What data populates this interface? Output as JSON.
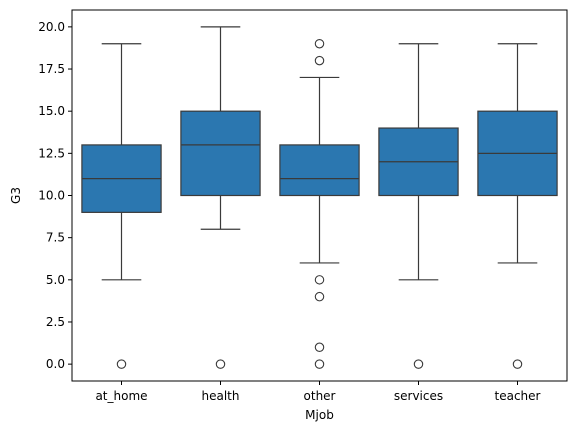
{
  "chart_data": {
    "type": "box",
    "xlabel": "Mjob",
    "ylabel": "G3",
    "ylim": [
      -1,
      21
    ],
    "yticks": [
      0.0,
      2.5,
      5.0,
      7.5,
      10.0,
      12.5,
      15.0,
      17.5,
      20.0
    ],
    "ytick_labels": [
      "0.0",
      "2.5",
      "5.0",
      "7.5",
      "10.0",
      "12.5",
      "15.0",
      "17.5",
      "20.0"
    ],
    "color": "#2b77b0",
    "edge_color": "#3a3a3a",
    "grid": false,
    "categories": [
      "at_home",
      "health",
      "other",
      "services",
      "teacher"
    ],
    "boxes": [
      {
        "category": "at_home",
        "whisker_low": 5,
        "q1": 9,
        "median": 11,
        "q3": 13,
        "whisker_high": 19,
        "outliers": [
          0
        ]
      },
      {
        "category": "health",
        "whisker_low": 8,
        "q1": 10,
        "median": 13,
        "q3": 15,
        "whisker_high": 20,
        "outliers": [
          0
        ]
      },
      {
        "category": "other",
        "whisker_low": 6,
        "q1": 10,
        "median": 11,
        "q3": 13,
        "whisker_high": 17,
        "outliers": [
          0,
          1,
          4,
          5,
          18,
          19
        ]
      },
      {
        "category": "services",
        "whisker_low": 5,
        "q1": 10,
        "median": 12,
        "q3": 14,
        "whisker_high": 19,
        "outliers": [
          0
        ]
      },
      {
        "category": "teacher",
        "whisker_low": 6,
        "q1": 10,
        "median": 12.5,
        "q3": 15,
        "whisker_high": 19,
        "outliers": [
          0
        ]
      }
    ]
  }
}
